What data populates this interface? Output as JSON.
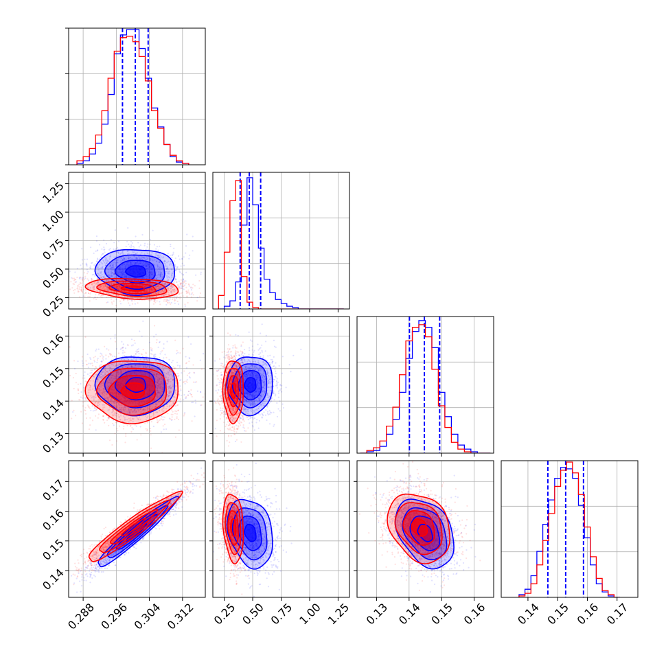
{
  "chart_data": {
    "type": "corner",
    "grid": true,
    "series_colors": {
      "blue": "#0000ff",
      "red": "#ff0000"
    },
    "quantile_line_style": "dashed",
    "parameters": [
      {
        "ticks": [
          0.288,
          0.296,
          0.304,
          0.312
        ],
        "tick_labels": [
          "0.288",
          "0.296",
          "0.304",
          "0.312"
        ],
        "range": [
          0.2845,
          0.3175
        ]
      },
      {
        "ticks": [
          0.25,
          0.5,
          0.75,
          1.0,
          1.25
        ],
        "tick_labels": [
          "0.25",
          "0.50",
          "0.75",
          "1.00",
          "1.25"
        ],
        "range": [
          0.15,
          1.35
        ]
      },
      {
        "ticks": [
          0.13,
          0.14,
          0.15,
          0.16
        ],
        "tick_labels": [
          "0.13",
          "0.14",
          "0.15",
          "0.16"
        ],
        "range": [
          0.124,
          0.166
        ]
      },
      {
        "ticks": [
          0.14,
          0.15,
          0.16,
          0.17
        ],
        "tick_labels": [
          "0.14",
          "0.15",
          "0.16",
          "0.17"
        ],
        "range": [
          0.131,
          0.177
        ]
      }
    ],
    "y_ticks_rows": {
      "1": {
        "ticks": [
          0.25,
          0.5,
          0.75,
          1.0,
          1.25
        ],
        "tick_labels": [
          "0.25",
          "0.50",
          "0.75",
          "1.00",
          "1.25"
        ]
      },
      "2": {
        "ticks": [
          0.13,
          0.14,
          0.15,
          0.16
        ],
        "tick_labels": [
          "0.13",
          "0.14",
          "0.15",
          "0.16"
        ]
      },
      "3": {
        "ticks": [
          0.14,
          0.15,
          0.16,
          0.17
        ],
        "tick_labels": [
          "0.14",
          "0.15",
          "0.16",
          "0.17"
        ]
      }
    },
    "histograms": [
      {
        "param": 0,
        "bins": [
          0.2865,
          0.288,
          0.2895,
          0.291,
          0.2925,
          0.294,
          0.2955,
          0.297,
          0.2985,
          0.3,
          0.3015,
          0.303,
          0.3045,
          0.306,
          0.3075,
          0.309,
          0.3105,
          0.312,
          0.3135
        ],
        "series": [
          {
            "color": "#0000ff",
            "counts": [
              0.01,
              0.03,
              0.08,
              0.16,
              0.3,
              0.52,
              0.82,
              0.96,
              1.0,
              1.0,
              0.86,
              0.64,
              0.42,
              0.28,
              0.15,
              0.06,
              0.02,
              0.01,
              0.0
            ],
            "quantiles": [
              0.2975,
              0.3006,
              0.3037
            ]
          },
          {
            "color": "#ff0000",
            "counts": [
              0.03,
              0.06,
              0.12,
              0.22,
              0.4,
              0.64,
              0.84,
              0.94,
              0.95,
              0.91,
              0.8,
              0.62,
              0.4,
              0.27,
              0.15,
              0.07,
              0.03,
              0.01,
              0.0
            ]
          }
        ]
      },
      {
        "param": 1,
        "bins": [
          0.2,
          0.25,
          0.3,
          0.35,
          0.4,
          0.45,
          0.5,
          0.55,
          0.6,
          0.65,
          0.7,
          0.75,
          0.8,
          0.85,
          0.9,
          0.95,
          1.0,
          1.05,
          1.1,
          1.15,
          1.2,
          1.25,
          1.3
        ],
        "series": [
          {
            "color": "#0000ff",
            "counts": [
              0.0,
              0.02,
              0.06,
              0.2,
              0.62,
              0.97,
              0.77,
              0.45,
              0.22,
              0.12,
              0.07,
              0.04,
              0.02,
              0.01,
              0.0,
              0.0,
              0.0,
              0.0,
              0.0,
              0.0,
              0.0,
              0.0
            ],
            "quantiles": [
              0.39,
              0.47,
              0.57
            ]
          },
          {
            "color": "#ff0000",
            "counts": [
              0.1,
              0.42,
              0.8,
              0.95,
              0.24,
              0.05,
              0.01,
              0.0,
              0.0,
              0.0,
              0.0,
              0.0,
              0.0,
              0.0,
              0.0,
              0.0,
              0.0,
              0.0,
              0.0,
              0.0,
              0.0,
              0.0
            ]
          }
        ]
      },
      {
        "param": 2,
        "bins": [
          0.125,
          0.127,
          0.129,
          0.131,
          0.133,
          0.135,
          0.137,
          0.139,
          0.141,
          0.143,
          0.145,
          0.147,
          0.149,
          0.151,
          0.153,
          0.155,
          0.157,
          0.159,
          0.161,
          0.163,
          0.165
        ],
        "series": [
          {
            "color": "#0000ff",
            "counts": [
              0.0,
              0.01,
              0.02,
              0.05,
              0.14,
              0.25,
              0.45,
              0.7,
              0.9,
              0.98,
              0.93,
              0.78,
              0.45,
              0.27,
              0.14,
              0.06,
              0.03,
              0.01,
              0.0,
              0.0
            ],
            "quantiles": [
              0.1401,
              0.1447,
              0.1494
            ]
          },
          {
            "color": "#ff0000",
            "counts": [
              0.0,
              0.02,
              0.04,
              0.09,
              0.2,
              0.34,
              0.58,
              0.83,
              0.93,
              0.95,
              0.86,
              0.62,
              0.35,
              0.19,
              0.08,
              0.03,
              0.01,
              0.0,
              0.0,
              0.0
            ]
          }
        ]
      },
      {
        "param": 3,
        "bins": [
          0.137,
          0.139,
          0.141,
          0.143,
          0.145,
          0.147,
          0.149,
          0.151,
          0.153,
          0.155,
          0.157,
          0.159,
          0.161,
          0.163,
          0.165,
          0.167,
          0.169,
          0.171
        ],
        "series": [
          {
            "color": "#0000ff",
            "counts": [
              0.02,
              0.06,
              0.16,
              0.34,
              0.54,
              0.72,
              0.88,
              0.96,
              0.95,
              0.88,
              0.68,
              0.44,
              0.24,
              0.1,
              0.04,
              0.01,
              0.0
            ],
            "quantiles": [
              0.1467,
              0.1527,
              0.1587
            ]
          },
          {
            "color": "#ff0000",
            "counts": [
              0.01,
              0.03,
              0.1,
              0.24,
              0.42,
              0.62,
              0.82,
              0.94,
              1.0,
              0.92,
              0.76,
              0.52,
              0.3,
              0.14,
              0.05,
              0.02,
              0.0
            ]
          }
        ]
      }
    ],
    "pairs": [
      {
        "row": 1,
        "col": 0,
        "series": [
          {
            "color": "#0000ff",
            "mean": [
              0.3008,
              0.48
            ],
            "sd": [
              0.0048,
              0.1
            ],
            "rho": -0.05,
            "points": 1300
          },
          {
            "color": "#ff0000",
            "mean": [
              0.3001,
              0.33
            ],
            "sd": [
              0.0056,
              0.045
            ],
            "rho": -0.2,
            "points": 1300
          }
        ]
      },
      {
        "row": 2,
        "col": 0,
        "series": [
          {
            "color": "#0000ff",
            "mean": [
              0.3008,
              0.145
            ],
            "sd": [
              0.0048,
              0.0045
            ],
            "rho": 0.0,
            "points": 1300
          },
          {
            "color": "#ff0000",
            "mean": [
              0.3001,
              0.1432
            ],
            "sd": [
              0.0056,
              0.0048
            ],
            "rho": 0.0,
            "points": 1300
          }
        ]
      },
      {
        "row": 2,
        "col": 1,
        "series": [
          {
            "color": "#0000ff",
            "mean": [
              0.48,
              0.145
            ],
            "sd": [
              0.1,
              0.0045
            ],
            "rho": 0.0,
            "points": 1300
          },
          {
            "color": "#ff0000",
            "mean": [
              0.33,
              0.1432
            ],
            "sd": [
              0.045,
              0.0048
            ],
            "rho": 0.0,
            "points": 1300
          }
        ]
      },
      {
        "row": 3,
        "col": 0,
        "series": [
          {
            "color": "#0000ff",
            "mean": [
              0.3008,
              0.1527
            ],
            "sd": [
              0.0048,
              0.0058
            ],
            "rho": 0.96,
            "points": 1300
          },
          {
            "color": "#ff0000",
            "mean": [
              0.3001,
              0.1545
            ],
            "sd": [
              0.0056,
              0.0058
            ],
            "rho": 0.95,
            "points": 1300
          }
        ]
      },
      {
        "row": 3,
        "col": 1,
        "series": [
          {
            "color": "#0000ff",
            "mean": [
              0.48,
              0.1527
            ],
            "sd": [
              0.1,
              0.0058
            ],
            "rho": -0.25,
            "points": 1300
          },
          {
            "color": "#ff0000",
            "mean": [
              0.33,
              0.1545
            ],
            "sd": [
              0.045,
              0.0058
            ],
            "rho": -0.2,
            "points": 1300
          }
        ]
      },
      {
        "row": 3,
        "col": 2,
        "series": [
          {
            "color": "#0000ff",
            "mean": [
              0.145,
              0.1527
            ],
            "sd": [
              0.0045,
              0.0058
            ],
            "rho": -0.35,
            "points": 1300
          },
          {
            "color": "#ff0000",
            "mean": [
              0.1432,
              0.1545
            ],
            "sd": [
              0.0048,
              0.0058
            ],
            "rho": -0.25,
            "points": 1300
          }
        ]
      }
    ],
    "contour_levels": [
      0.5,
      1.0,
      1.5,
      2.0
    ]
  }
}
